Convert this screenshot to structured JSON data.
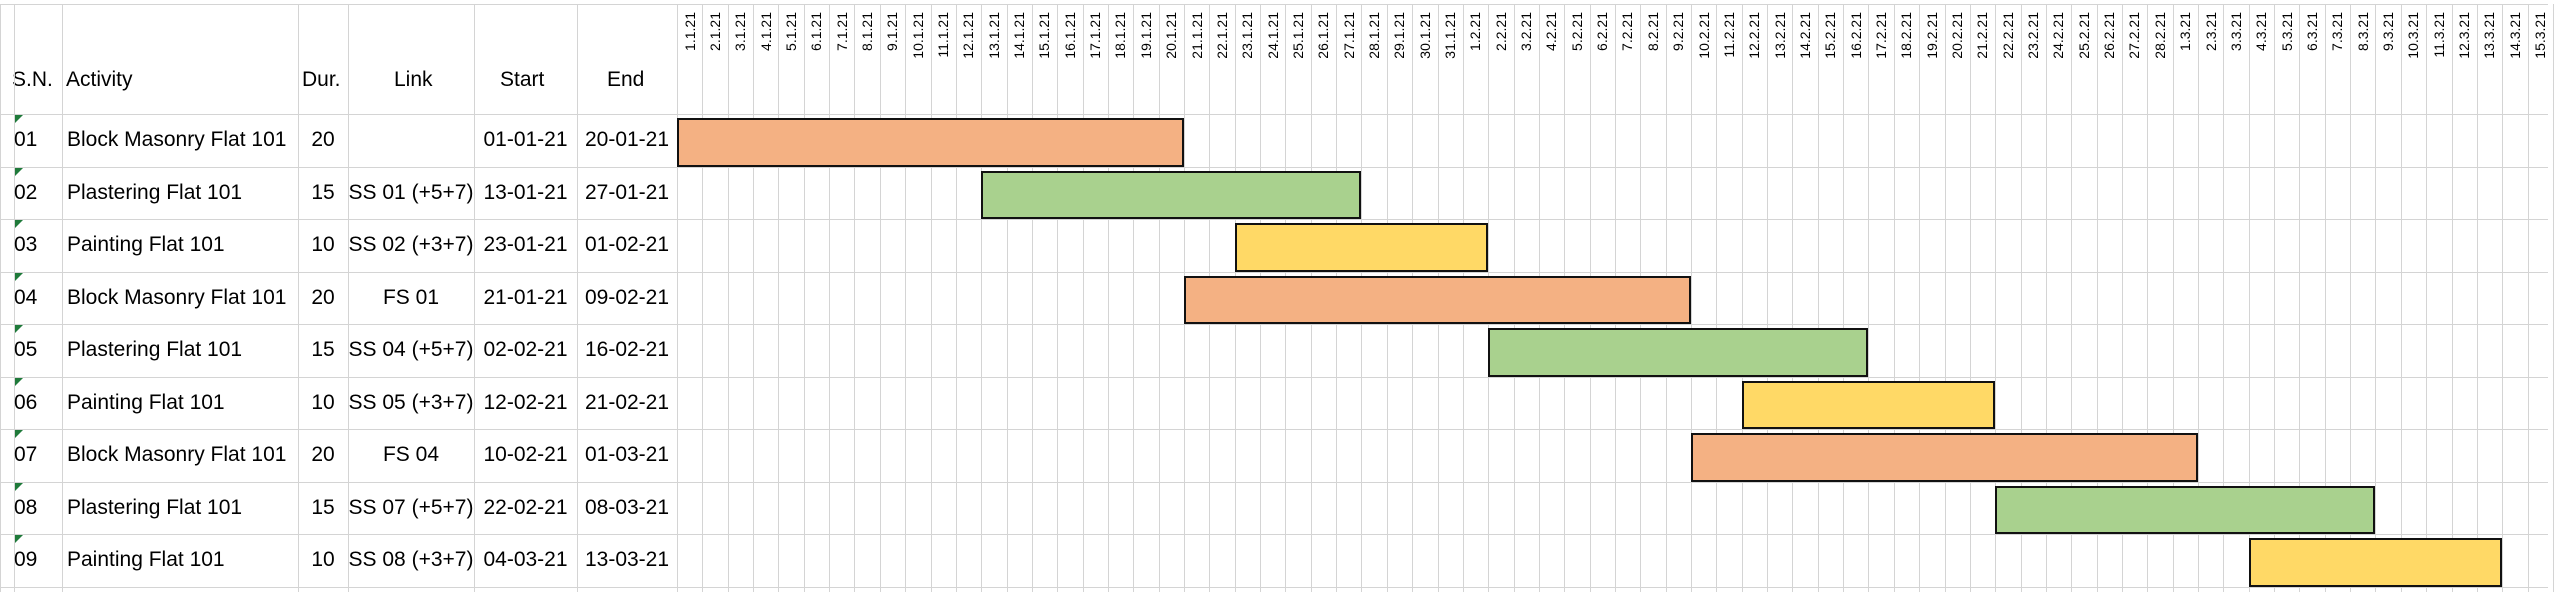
{
  "headers": {
    "sn": "S.N.",
    "activity": "Activity",
    "dur": "Dur.",
    "link": "Link",
    "start": "Start",
    "end": "End"
  },
  "colors": {
    "masonry": "#F4B183",
    "plastering": "#A9D18E",
    "painting": "#FFD966",
    "grid": "#D4D4D4",
    "bar_border": "#111111"
  },
  "dates": [
    "1.1.21",
    "2.1.21",
    "3.1.21",
    "4.1.21",
    "5.1.21",
    "6.1.21",
    "7.1.21",
    "8.1.21",
    "9.1.21",
    "10.1.21",
    "11.1.21",
    "12.1.21",
    "13.1.21",
    "14.1.21",
    "15.1.21",
    "16.1.21",
    "17.1.21",
    "18.1.21",
    "19.1.21",
    "20.1.21",
    "21.1.21",
    "22.1.21",
    "23.1.21",
    "24.1.21",
    "25.1.21",
    "26.1.21",
    "27.1.21",
    "28.1.21",
    "29.1.21",
    "30.1.21",
    "31.1.21",
    "1.2.21",
    "2.2.21",
    "3.2.21",
    "4.2.21",
    "5.2.21",
    "6.2.21",
    "7.2.21",
    "8.2.21",
    "9.2.21",
    "10.2.21",
    "11.2.21",
    "12.2.21",
    "13.2.21",
    "14.2.21",
    "15.2.21",
    "16.2.21",
    "17.2.21",
    "18.2.21",
    "19.2.21",
    "20.2.21",
    "21.2.21",
    "22.2.21",
    "23.2.21",
    "24.2.21",
    "25.2.21",
    "26.2.21",
    "27.2.21",
    "28.2.21",
    "1.3.21",
    "2.3.21",
    "3.3.21",
    "4.3.21",
    "5.3.21",
    "6.3.21",
    "7.3.21",
    "8.3.21",
    "9.3.21",
    "10.3.21",
    "11.3.21",
    "12.3.21",
    "13.3.21",
    "14.3.21",
    "15.3.21"
  ],
  "rows": [
    {
      "sn": "01",
      "activity": "Block Masonry Flat 101",
      "dur": "20",
      "link": "",
      "start": "01-01-21",
      "end": "20-01-21",
      "bar": {
        "from_day": 1,
        "to_day": 20,
        "color": "masonry"
      }
    },
    {
      "sn": "02",
      "activity": "Plastering Flat 101",
      "dur": "15",
      "link": "SS 01 (+5+7)",
      "start": "13-01-21",
      "end": "27-01-21",
      "bar": {
        "from_day": 13,
        "to_day": 27,
        "color": "plastering"
      }
    },
    {
      "sn": "03",
      "activity": "Painting Flat 101",
      "dur": "10",
      "link": "SS 02 (+3+7)",
      "start": "23-01-21",
      "end": "01-02-21",
      "bar": {
        "from_day": 23,
        "to_day": 32,
        "color": "painting"
      }
    },
    {
      "sn": "04",
      "activity": "Block Masonry Flat 101",
      "dur": "20",
      "link": "FS 01",
      "start": "21-01-21",
      "end": "09-02-21",
      "bar": {
        "from_day": 21,
        "to_day": 40,
        "color": "masonry"
      }
    },
    {
      "sn": "05",
      "activity": "Plastering Flat 101",
      "dur": "15",
      "link": "SS 04 (+5+7)",
      "start": "02-02-21",
      "end": "16-02-21",
      "bar": {
        "from_day": 33,
        "to_day": 47,
        "color": "plastering"
      }
    },
    {
      "sn": "06",
      "activity": "Painting Flat 101",
      "dur": "10",
      "link": "SS 05 (+3+7)",
      "start": "12-02-21",
      "end": "21-02-21",
      "bar": {
        "from_day": 43,
        "to_day": 52,
        "color": "painting"
      }
    },
    {
      "sn": "07",
      "activity": "Block Masonry Flat 101",
      "dur": "20",
      "link": "FS 04",
      "start": "10-02-21",
      "end": "01-03-21",
      "bar": {
        "from_day": 41,
        "to_day": 60,
        "color": "masonry"
      }
    },
    {
      "sn": "08",
      "activity": "Plastering Flat 101",
      "dur": "15",
      "link": "SS 07 (+5+7)",
      "start": "22-02-21",
      "end": "08-03-21",
      "bar": {
        "from_day": 53,
        "to_day": 67,
        "color": "plastering"
      }
    },
    {
      "sn": "09",
      "activity": "Painting Flat 101",
      "dur": "10",
      "link": "SS 08 (+3+7)",
      "start": "04-03-21",
      "end": "13-03-21",
      "bar": {
        "from_day": 63,
        "to_day": 72,
        "color": "painting"
      }
    }
  ]
}
